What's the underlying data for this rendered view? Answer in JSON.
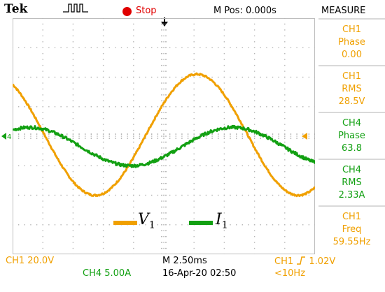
{
  "header": {
    "brand": "Tek",
    "acquisition_icon": "pulse-train-icon",
    "run_state": "Stop",
    "horizontal_position": "M Pos: 0.000s",
    "measure_title": "MEASURE"
  },
  "measurements": [
    {
      "channel": "CH1",
      "type": "Phase",
      "value": "0.00",
      "color": "#f0a000"
    },
    {
      "channel": "CH1",
      "type": "RMS",
      "value": "28.5V",
      "color": "#f0a000"
    },
    {
      "channel": "CH4",
      "type": "Phase",
      "value": "63.8",
      "color": "#12a012"
    },
    {
      "channel": "CH4",
      "type": "RMS",
      "value": "2.33A",
      "color": "#12a012"
    },
    {
      "channel": "CH1",
      "type": "Freq",
      "value": "59.55Hz",
      "color": "#f0a000"
    }
  ],
  "legend": {
    "v1": {
      "symbol": "V",
      "sub": "1",
      "color": "#f0a000"
    },
    "i1": {
      "symbol": "I",
      "sub": "1",
      "color": "#12a012"
    }
  },
  "footer": {
    "ch1_scale": "CH1  20.0V",
    "ch4_scale": "CH4  5.00A",
    "timebase": "M 2.50ms",
    "datetime": "16-Apr-20 02:50",
    "trigger_source": "CH1",
    "trigger_level": "1.02V",
    "trigger_freq": "<10Hz"
  },
  "chart_data": {
    "type": "line",
    "grid": true,
    "divisions": {
      "x": 10,
      "y": 8
    },
    "x_scale": "2.50ms/div",
    "series": [
      {
        "name": "V",
        "channel": "CH1",
        "color": "#f0a000",
        "amplitude_div": 2.05,
        "offset_div": 0.05,
        "freq_hz": 59.55,
        "phase_deg": 0,
        "noise_div": 0.03
      },
      {
        "name": "I",
        "channel": "CH4",
        "color": "#12a012",
        "amplitude_div": 0.65,
        "offset_div": -0.35,
        "freq_hz": 59.55,
        "phase_deg": 63.8,
        "noise_div": 0.05
      }
    ]
  }
}
